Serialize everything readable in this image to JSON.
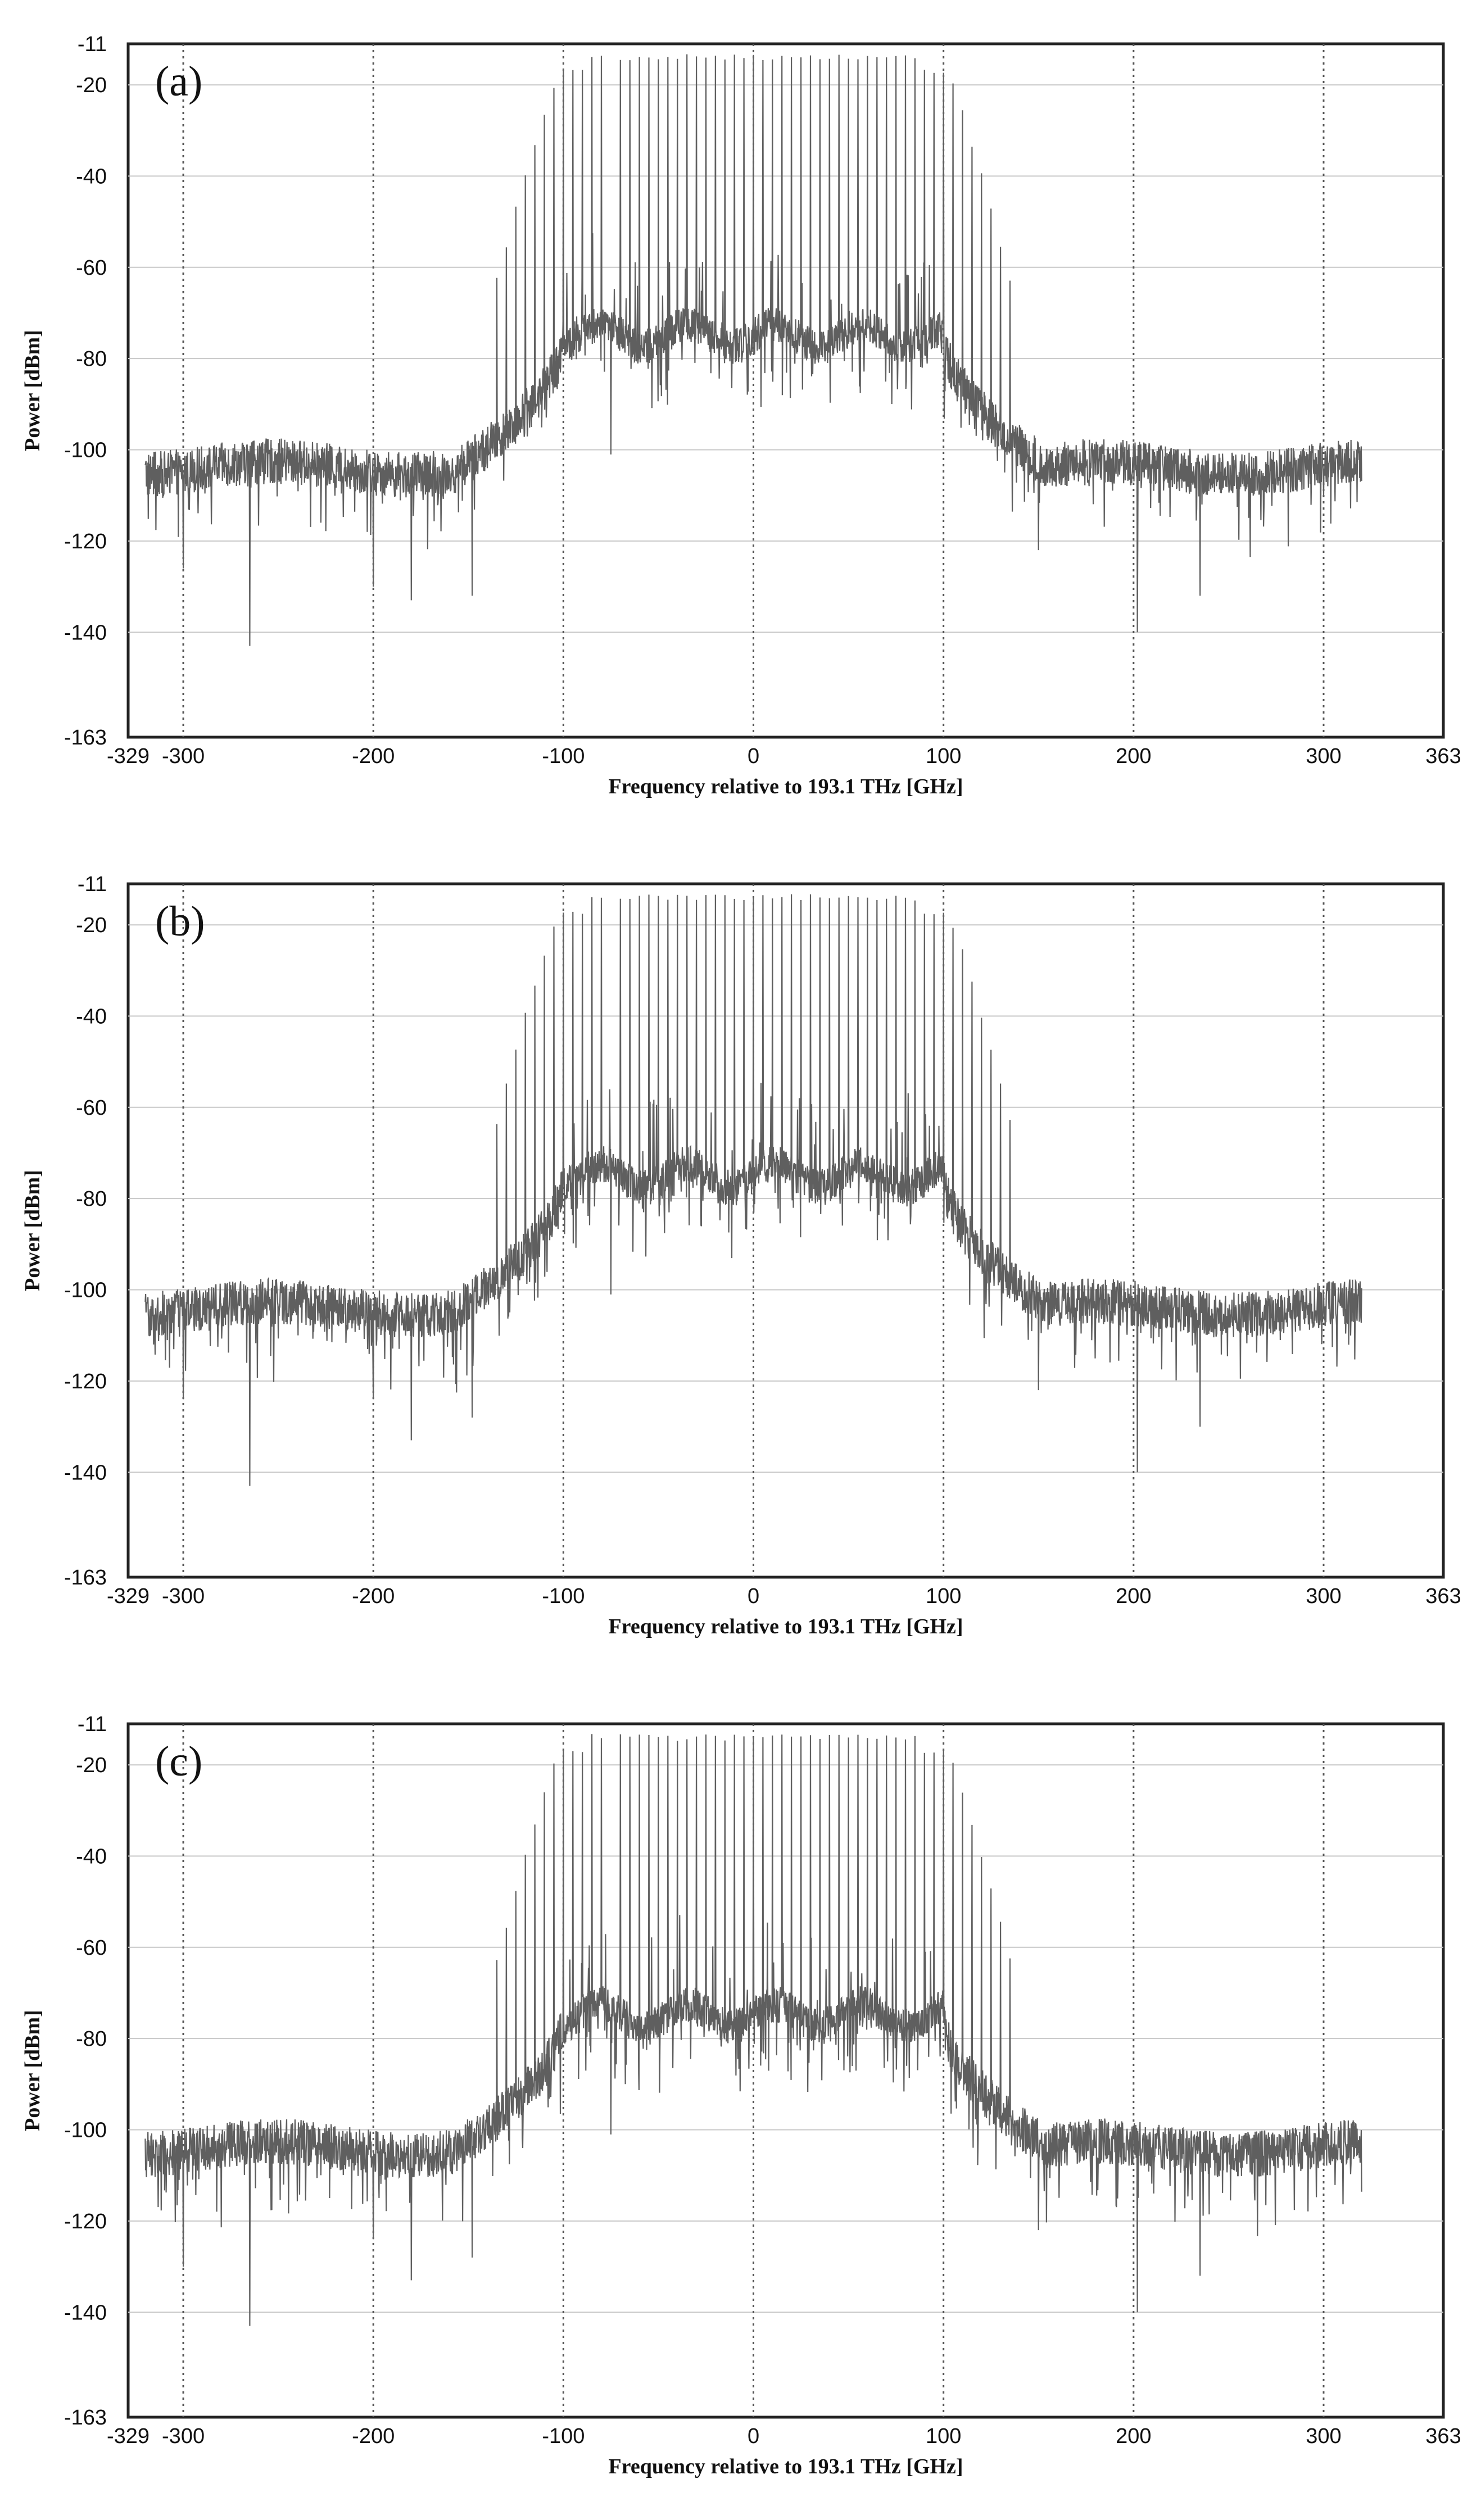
{
  "chart_data": [
    {
      "type": "line",
      "panel_label": "(a)",
      "xlabel": "Frequency relative to 193.1 THz [GHz]",
      "ylabel": "Power [dBm]",
      "xlim": [
        -329,
        363
      ],
      "ylim": [
        -163,
        -11
      ],
      "xticks": [
        -329,
        -300,
        -200,
        -100,
        0,
        100,
        200,
        300,
        363
      ],
      "yticks": [
        -11,
        -20,
        -40,
        -60,
        -80,
        -100,
        -120,
        -140,
        -163
      ],
      "grid": true,
      "spectrum": {
        "x_range": [
          -320,
          320
        ],
        "carrier_spacing_ghz": 5,
        "carrier_band": [
          -100,
          100
        ],
        "carrier_peak_dbm": -14,
        "carrier_edge_peak_dbm": -17,
        "sideband_carriers_dbm": [
          [
            -135,
            -63
          ],
          [
            -130,
            -55
          ],
          [
            -125,
            -47
          ],
          [
            -120,
            -40
          ],
          [
            -115,
            -33
          ],
          [
            -110,
            -26
          ],
          [
            -105,
            -20
          ],
          [
            105,
            -20
          ],
          [
            110,
            -26
          ],
          [
            115,
            -33
          ],
          [
            120,
            -40
          ],
          [
            125,
            -47
          ],
          [
            130,
            -55
          ],
          [
            135,
            -63
          ]
        ],
        "in_band_floor_dbm": -75,
        "outer_floor_dbm": -104,
        "dips_dbm": [
          [
            -300,
            -126
          ],
          [
            -265,
            -143
          ],
          [
            -200,
            -130
          ],
          [
            -180,
            -133
          ],
          [
            -148,
            -132
          ],
          [
            -75,
            -101
          ],
          [
            202,
            -140
          ],
          [
            235,
            -132
          ],
          [
            150,
            -122
          ]
        ]
      }
    },
    {
      "type": "line",
      "panel_label": "(b)",
      "xlabel": "Frequency relative to 193.1 THz [GHz]",
      "ylabel": "Power [dBm]",
      "xlim": [
        -329,
        363
      ],
      "ylim": [
        -163,
        -11
      ],
      "xticks": [
        -329,
        -300,
        -200,
        -100,
        0,
        100,
        200,
        300,
        363
      ],
      "yticks": [
        -11,
        -20,
        -40,
        -60,
        -80,
        -100,
        -120,
        -140,
        -163
      ],
      "grid": true,
      "spectrum": {
        "x_range": [
          -320,
          320
        ],
        "carrier_spacing_ghz": 5,
        "carrier_band": [
          -100,
          100
        ],
        "carrier_peak_dbm": -14,
        "carrier_edge_peak_dbm": -17,
        "sideband_carriers_dbm": [
          [
            -135,
            -63
          ],
          [
            -130,
            -55
          ],
          [
            -125,
            -47
          ],
          [
            -120,
            -40
          ],
          [
            -115,
            -33
          ],
          [
            -110,
            -26
          ],
          [
            -105,
            -20
          ],
          [
            105,
            -20
          ],
          [
            110,
            -26
          ],
          [
            115,
            -33
          ],
          [
            120,
            -40
          ],
          [
            125,
            -47
          ],
          [
            130,
            -55
          ],
          [
            135,
            -63
          ]
        ],
        "in_band_floor_dbm": -75,
        "outer_floor_dbm": -104,
        "dips_dbm": [
          [
            -300,
            -124
          ],
          [
            -265,
            -143
          ],
          [
            -200,
            -124
          ],
          [
            -180,
            -133
          ],
          [
            -148,
            -128
          ],
          [
            -75,
            -101
          ],
          [
            202,
            -140
          ],
          [
            235,
            -130
          ],
          [
            150,
            -122
          ]
        ]
      }
    },
    {
      "type": "line",
      "panel_label": "(c)",
      "xlabel": "Frequency relative to 193.1 THz [GHz]",
      "ylabel": "Power [dBm]",
      "xlim": [
        -329,
        363
      ],
      "ylim": [
        -163,
        -11
      ],
      "xticks": [
        -329,
        -300,
        -200,
        -100,
        0,
        100,
        200,
        300,
        363
      ],
      "yticks": [
        -11,
        -20,
        -40,
        -60,
        -80,
        -100,
        -120,
        -140,
        -163
      ],
      "grid": true,
      "spectrum": {
        "x_range": [
          -320,
          320
        ],
        "carrier_spacing_ghz": 5,
        "carrier_band": [
          -100,
          100
        ],
        "carrier_peak_dbm": -14,
        "carrier_edge_peak_dbm": -17,
        "sideband_carriers_dbm": [
          [
            -135,
            -63
          ],
          [
            -130,
            -55
          ],
          [
            -125,
            -47
          ],
          [
            -120,
            -40
          ],
          [
            -115,
            -33
          ],
          [
            -110,
            -26
          ],
          [
            -105,
            -20
          ],
          [
            105,
            -20
          ],
          [
            110,
            -26
          ],
          [
            115,
            -33
          ],
          [
            120,
            -40
          ],
          [
            125,
            -47
          ],
          [
            130,
            -55
          ],
          [
            135,
            -63
          ]
        ],
        "in_band_floor_dbm": -75,
        "outer_floor_dbm": -104,
        "dips_dbm": [
          [
            -300,
            -130
          ],
          [
            -265,
            -143
          ],
          [
            -200,
            -124
          ],
          [
            -180,
            -133
          ],
          [
            -148,
            -128
          ],
          [
            -75,
            -101
          ],
          [
            202,
            -140
          ],
          [
            235,
            -132
          ],
          [
            150,
            -122
          ]
        ]
      }
    }
  ]
}
